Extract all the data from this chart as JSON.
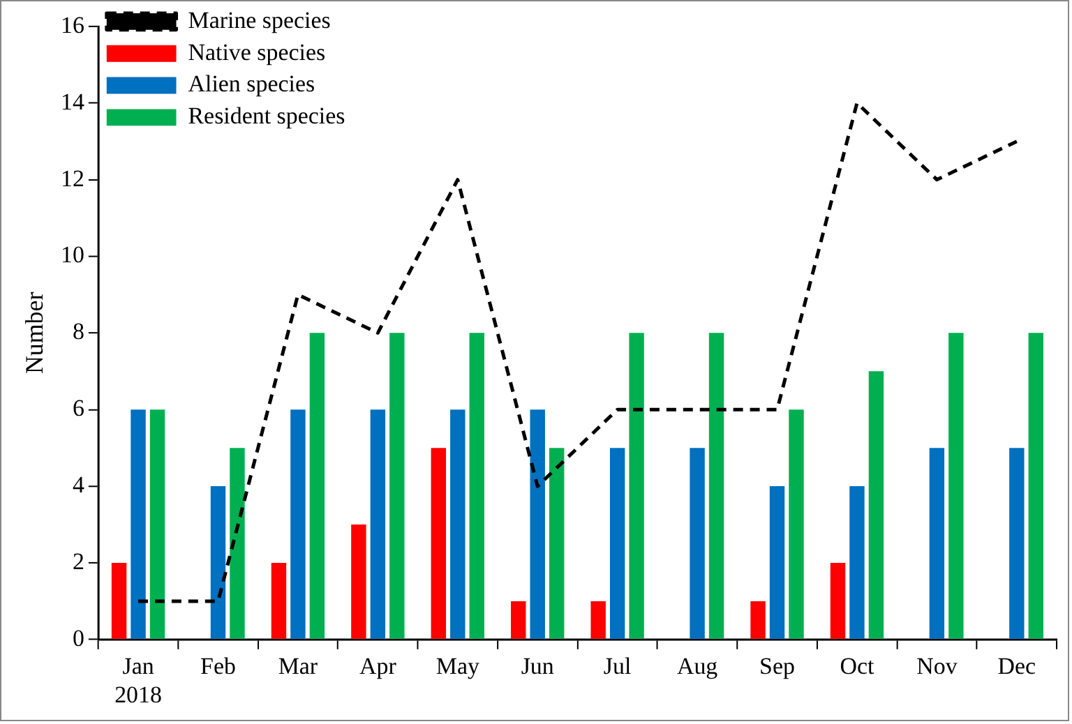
{
  "chart_data": {
    "type": "bar",
    "ylabel": "Number",
    "categories": [
      "Jan\n2018",
      "Feb",
      "Mar",
      "Apr",
      "May",
      "Jun",
      "Jul",
      "Aug",
      "Sep",
      "Oct",
      "Nov",
      "Dec"
    ],
    "series": [
      {
        "name": "Native species",
        "color": "#ff0000",
        "values": [
          2,
          0,
          2,
          3,
          5,
          1,
          1,
          0,
          1,
          2,
          0,
          0
        ]
      },
      {
        "name": "Alien species",
        "color": "#0070c0",
        "values": [
          6,
          4,
          6,
          6,
          6,
          6,
          5,
          5,
          4,
          4,
          5,
          5
        ]
      },
      {
        "name": "Resident species",
        "color": "#00b050",
        "values": [
          6,
          5,
          8,
          8,
          8,
          5,
          8,
          8,
          6,
          7,
          8,
          8
        ]
      },
      {
        "name": "Marine species",
        "type": "line",
        "color": "#000000",
        "line_style": "dashed",
        "marker": "none",
        "values": [
          1,
          1,
          9,
          8,
          12,
          4,
          6,
          6,
          6,
          14,
          12,
          13
        ]
      }
    ],
    "ylim": [
      0,
      16
    ],
    "yticks": [
      0,
      2,
      4,
      6,
      8,
      10,
      12,
      14,
      16
    ],
    "grid": false,
    "legend": "top left"
  }
}
